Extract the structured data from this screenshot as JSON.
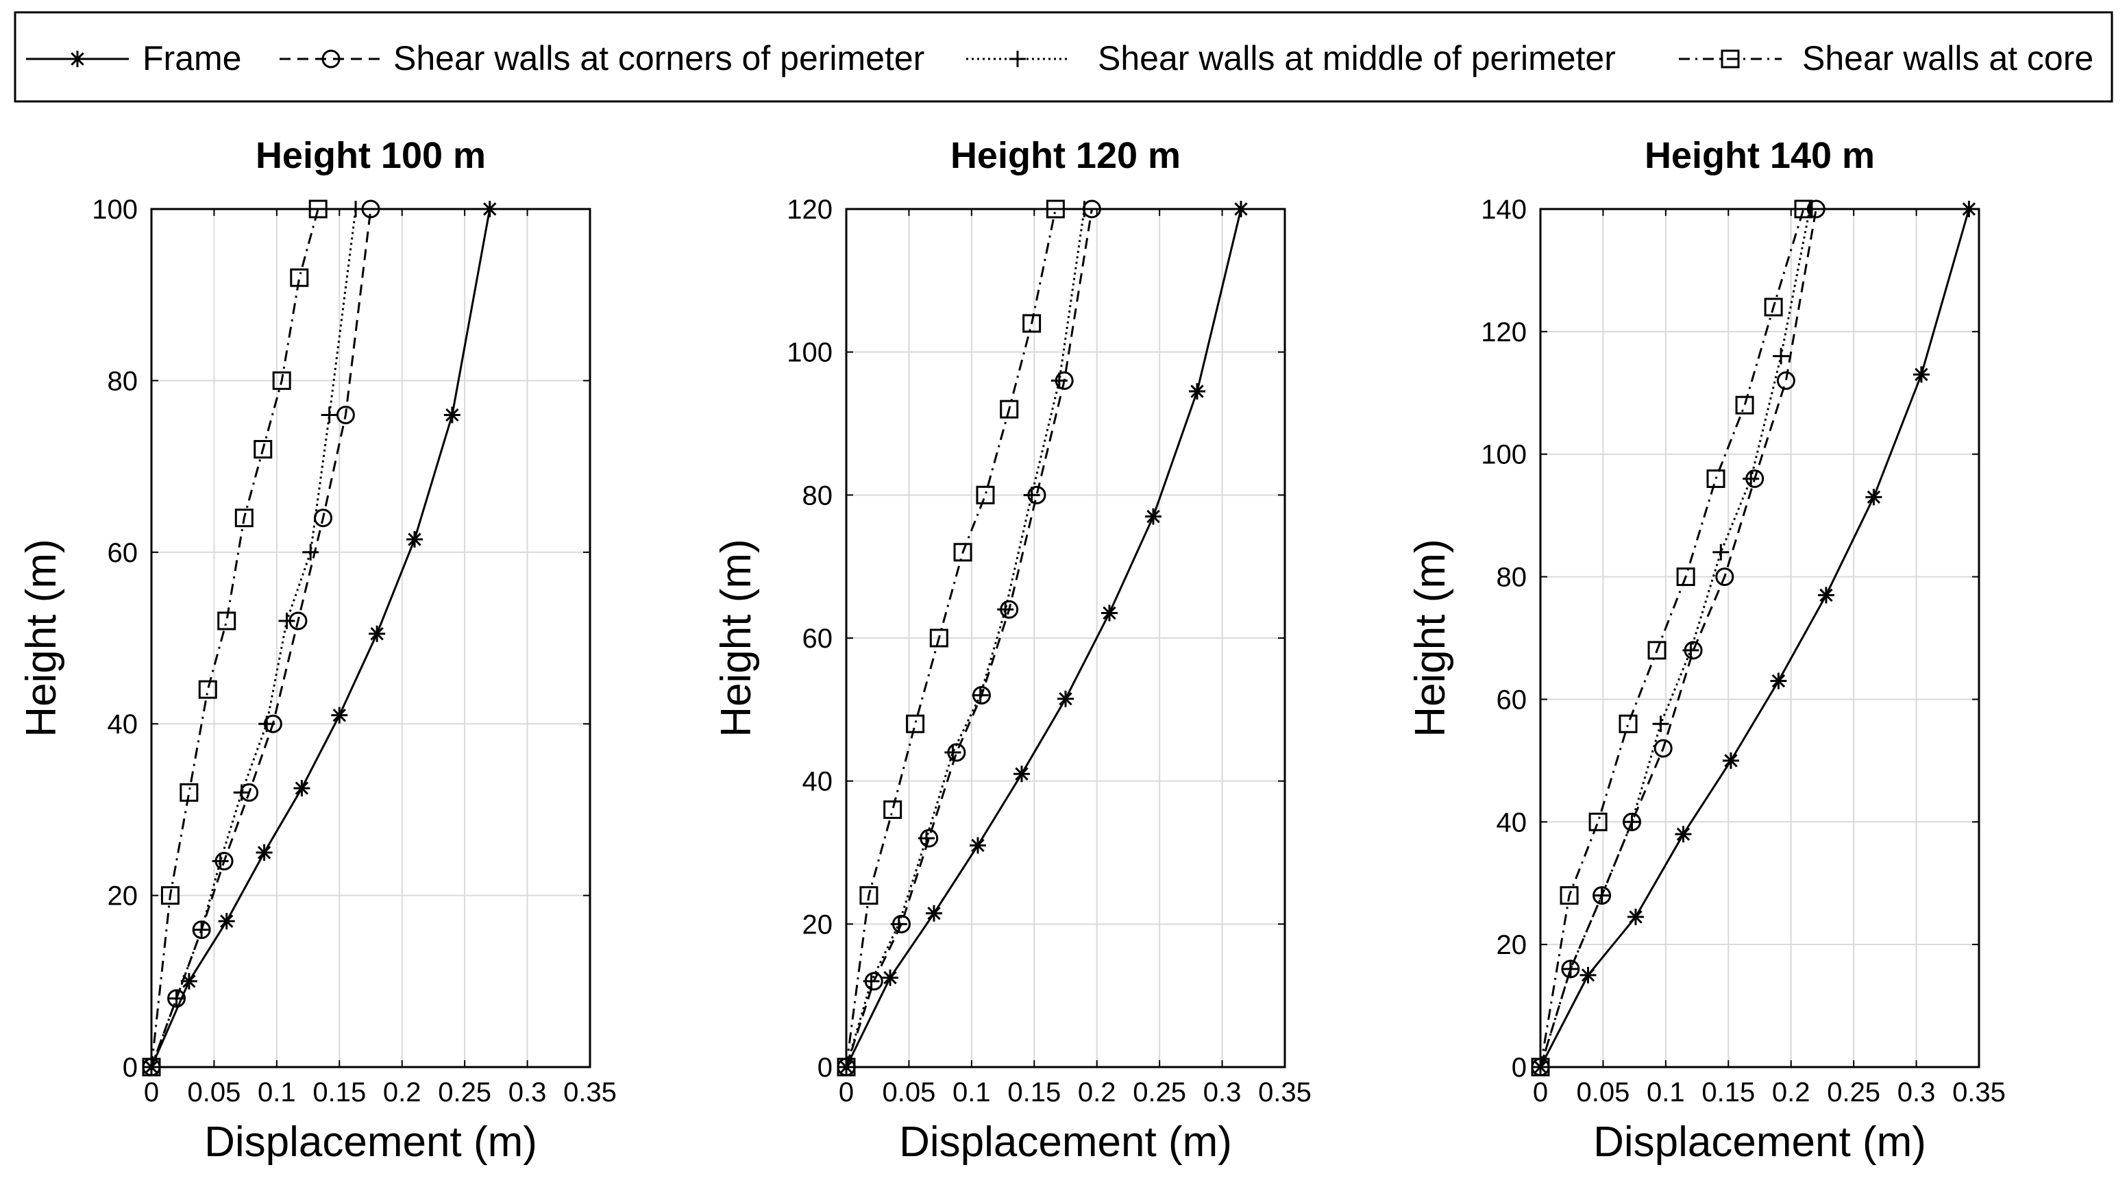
{
  "legend": {
    "entries": [
      {
        "label": "Frame",
        "style": "solid",
        "marker": "asterisk"
      },
      {
        "label": "Shear walls at corners of perimeter",
        "style": "dashed",
        "marker": "circle"
      },
      {
        "label": "Shear walls at middle of perimeter",
        "style": "dotted",
        "marker": "plus"
      },
      {
        "label": "Shear walls at core",
        "style": "dashdot",
        "marker": "square"
      }
    ],
    "placement": "top"
  },
  "chart_data": [
    {
      "type": "line",
      "title": "Height 100 m",
      "xlabel": "Displacement (m)",
      "ylabel": "Height (m)",
      "xlim": [
        0,
        0.35
      ],
      "ylim": [
        0,
        100
      ],
      "xticks": [
        "0",
        "0.05",
        "0.1",
        "0.15",
        "0.2",
        "0.25",
        "0.3",
        "0.35"
      ],
      "yticks": [
        "0",
        "20",
        "40",
        "60",
        "80",
        "100"
      ],
      "grid": true,
      "series": [
        {
          "name": "Frame",
          "points": [
            [
              0,
              0
            ],
            [
              0.03,
              10
            ],
            [
              0.06,
              17
            ],
            [
              0.09,
              25
            ],
            [
              0.12,
              32.5
            ],
            [
              0.15,
              41
            ],
            [
              0.18,
              50.5
            ],
            [
              0.21,
              61.5
            ],
            [
              0.24,
              76
            ],
            [
              0.27,
              100
            ]
          ]
        },
        {
          "name": "Shear walls at corners of perimeter",
          "points": [
            [
              0,
              0
            ],
            [
              0.02,
              8
            ],
            [
              0.04,
              16
            ],
            [
              0.058,
              24
            ],
            [
              0.078,
              32
            ],
            [
              0.097,
              40
            ],
            [
              0.117,
              52
            ],
            [
              0.137,
              64
            ],
            [
              0.155,
              76
            ],
            [
              0.175,
              100
            ]
          ]
        },
        {
          "name": "Shear walls at middle of perimeter",
          "points": [
            [
              0,
              0
            ],
            [
              0.02,
              8
            ],
            [
              0.04,
              16
            ],
            [
              0.055,
              24
            ],
            [
              0.072,
              32
            ],
            [
              0.092,
              40
            ],
            [
              0.108,
              52
            ],
            [
              0.127,
              60
            ],
            [
              0.142,
              76
            ],
            [
              0.163,
              100
            ]
          ]
        },
        {
          "name": "Shear walls at core",
          "points": [
            [
              0,
              0
            ],
            [
              0.015,
              20
            ],
            [
              0.03,
              32
            ],
            [
              0.045,
              44
            ],
            [
              0.06,
              52
            ],
            [
              0.074,
              64
            ],
            [
              0.089,
              72
            ],
            [
              0.104,
              80
            ],
            [
              0.118,
              92
            ],
            [
              0.133,
              100
            ]
          ]
        }
      ]
    },
    {
      "type": "line",
      "title": "Height 120 m",
      "xlabel": "Displacement (m)",
      "ylabel": "Height (m)",
      "xlim": [
        0,
        0.35
      ],
      "ylim": [
        0,
        120
      ],
      "xticks": [
        "0",
        "0.05",
        "0.1",
        "0.15",
        "0.2",
        "0.25",
        "0.3",
        "0.35"
      ],
      "yticks": [
        "0",
        "20",
        "40",
        "60",
        "80",
        "100",
        "120"
      ],
      "grid": true,
      "series": [
        {
          "name": "Frame",
          "points": [
            [
              0,
              0
            ],
            [
              0.035,
              12.5
            ],
            [
              0.07,
              21.5
            ],
            [
              0.105,
              31
            ],
            [
              0.14,
              41
            ],
            [
              0.175,
              51.5
            ],
            [
              0.21,
              63.5
            ],
            [
              0.245,
              77
            ],
            [
              0.28,
              94.5
            ],
            [
              0.315,
              120
            ]
          ]
        },
        {
          "name": "Shear walls at corners of perimeter",
          "points": [
            [
              0,
              0
            ],
            [
              0.022,
              12
            ],
            [
              0.044,
              20
            ],
            [
              0.066,
              32
            ],
            [
              0.088,
              44
            ],
            [
              0.108,
              52
            ],
            [
              0.13,
              64
            ],
            [
              0.152,
              80
            ],
            [
              0.174,
              96
            ],
            [
              0.196,
              120
            ]
          ]
        },
        {
          "name": "Shear walls at middle of perimeter",
          "points": [
            [
              0,
              0
            ],
            [
              0.02,
              12
            ],
            [
              0.042,
              20
            ],
            [
              0.064,
              32
            ],
            [
              0.085,
              44
            ],
            [
              0.107,
              52
            ],
            [
              0.127,
              64
            ],
            [
              0.148,
              80
            ],
            [
              0.17,
              96
            ],
            [
              0.19,
              120
            ]
          ]
        },
        {
          "name": "Shear walls at core",
          "points": [
            [
              0,
              0
            ],
            [
              0.018,
              24
            ],
            [
              0.037,
              36
            ],
            [
              0.055,
              48
            ],
            [
              0.074,
              60
            ],
            [
              0.093,
              72
            ],
            [
              0.111,
              80
            ],
            [
              0.13,
              92
            ],
            [
              0.148,
              104
            ],
            [
              0.167,
              120
            ]
          ]
        }
      ]
    },
    {
      "type": "line",
      "title": "Height 140 m",
      "xlabel": "Displacement (m)",
      "ylabel": "Height (m)",
      "xlim": [
        0,
        0.35
      ],
      "ylim": [
        0,
        140
      ],
      "xticks": [
        "0",
        "0.05",
        "0.1",
        "0.15",
        "0.2",
        "0.25",
        "0.3",
        "0.35"
      ],
      "yticks": [
        "0",
        "20",
        "40",
        "60",
        "80",
        "100",
        "120",
        "140"
      ],
      "grid": true,
      "series": [
        {
          "name": "Frame",
          "points": [
            [
              0,
              0
            ],
            [
              0.038,
              15
            ],
            [
              0.076,
              24.5
            ],
            [
              0.114,
              38
            ],
            [
              0.152,
              50
            ],
            [
              0.19,
              63
            ],
            [
              0.228,
              77
            ],
            [
              0.266,
              93
            ],
            [
              0.304,
              113
            ],
            [
              0.342,
              140
            ]
          ]
        },
        {
          "name": "Shear walls at corners of perimeter",
          "points": [
            [
              0,
              0
            ],
            [
              0.024,
              16
            ],
            [
              0.049,
              28
            ],
            [
              0.073,
              40
            ],
            [
              0.098,
              52
            ],
            [
              0.122,
              68
            ],
            [
              0.147,
              80
            ],
            [
              0.171,
              96
            ],
            [
              0.196,
              112
            ],
            [
              0.22,
              140
            ]
          ]
        },
        {
          "name": "Shear walls at middle of perimeter",
          "points": [
            [
              0,
              0
            ],
            [
              0.024,
              16
            ],
            [
              0.049,
              28
            ],
            [
              0.073,
              40
            ],
            [
              0.096,
              56
            ],
            [
              0.12,
              68
            ],
            [
              0.144,
              84
            ],
            [
              0.168,
              96
            ],
            [
              0.192,
              116
            ],
            [
              0.215,
              140
            ]
          ]
        },
        {
          "name": "Shear walls at core",
          "points": [
            [
              0,
              0
            ],
            [
              0.023,
              28
            ],
            [
              0.046,
              40
            ],
            [
              0.07,
              56
            ],
            [
              0.093,
              68
            ],
            [
              0.116,
              80
            ],
            [
              0.14,
              96
            ],
            [
              0.163,
              108
            ],
            [
              0.186,
              124
            ],
            [
              0.21,
              140
            ]
          ]
        }
      ]
    }
  ]
}
